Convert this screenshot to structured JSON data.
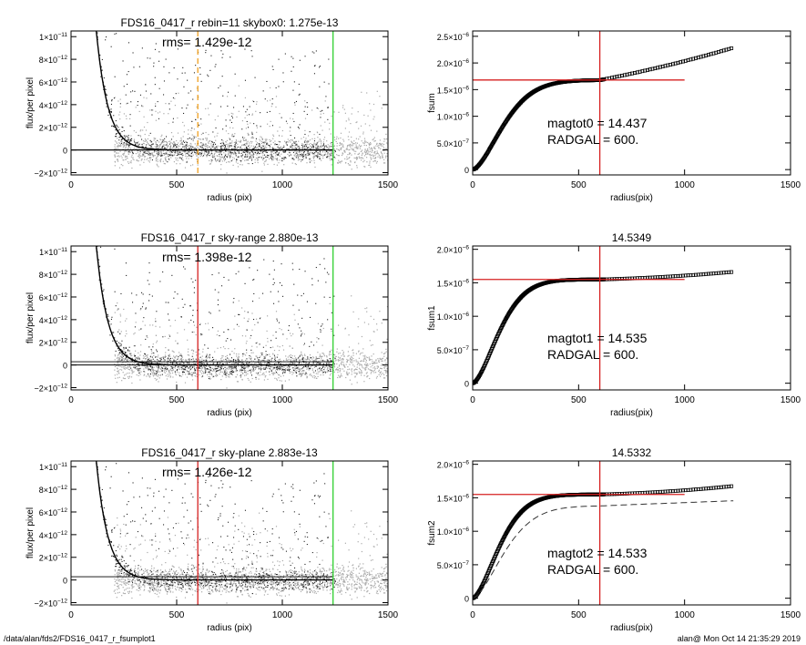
{
  "footer": {
    "path": "/data/alan/fds2/FDS16_0417_r_fsumplot1",
    "timestamp": "alan@  Mon Oct 14 21:35:29 2019"
  },
  "colors": {
    "red": "#d62020",
    "green": "#2fd02f",
    "orange": "#f0a020",
    "gray_light": "#aaaaaa",
    "gray_dark": "#555555"
  },
  "chart_data": [
    {
      "id": "profile1",
      "type": "scatter",
      "title": "FDS16_0417_r rebin=11    skybox0:  1.275e-13",
      "annotation": "rms= 1.429e-12",
      "xlabel": "radius (pix)",
      "ylabel": "flux/per pixel",
      "xlim": [
        0,
        1500
      ],
      "ylim": [
        -2.2e-12,
        1.05e-11
      ],
      "xticks": [
        0,
        500,
        1000,
        1500
      ],
      "xtick_labels": [
        "0",
        "500",
        "1000",
        "1500"
      ],
      "yticks": [
        -2e-12,
        0,
        2e-12,
        4e-12,
        6e-12,
        8e-12,
        1e-11
      ],
      "ytick_labels": [
        {
          "m": "−2×10",
          "e": "−12"
        },
        {
          "m": "0",
          "e": ""
        },
        {
          "m": "2×10",
          "e": "−12"
        },
        {
          "m": "4×10",
          "e": "−12"
        },
        {
          "m": "6×10",
          "e": "−12"
        },
        {
          "m": "8×10",
          "e": "−12"
        },
        {
          "m": "1×10",
          "e": "−11"
        }
      ],
      "sky_lines": [
        0,
        0
      ],
      "vlines": [
        {
          "x": 600,
          "color": "orange",
          "dashed": true
        },
        {
          "x": 1240,
          "color": "green",
          "dashed": false
        }
      ]
    },
    {
      "id": "growth1",
      "type": "line",
      "title": "",
      "xlabel": "radius(pix)",
      "ylabel": "fsum",
      "xlim": [
        0,
        1500
      ],
      "ylim": [
        -1e-07,
        2.6e-06
      ],
      "xticks": [
        0,
        500,
        1000,
        1500
      ],
      "xtick_labels": [
        "0",
        "500",
        "1000",
        "1500"
      ],
      "yticks": [
        0,
        5e-07,
        1e-06,
        1.5e-06,
        2e-06,
        2.5e-06
      ],
      "ytick_labels": [
        {
          "m": "0",
          "e": ""
        },
        {
          "m": "5.0×10",
          "e": "−7"
        },
        {
          "m": "1.0×10",
          "e": "−6"
        },
        {
          "m": "1.5×10",
          "e": "−6"
        },
        {
          "m": "2.0×10",
          "e": "−6"
        },
        {
          "m": "2.5×10",
          "e": "−6"
        }
      ],
      "curve": {
        "plateau": 1.68e-06,
        "scale": 185,
        "tail_slope": 7.6e-10,
        "tail_curv": 3.2e-13,
        "x_end": 1230
      },
      "hline": {
        "y": 1.68e-06,
        "x_end": 1000
      },
      "vline": {
        "x": 600
      },
      "text_lines": [
        "magtot0 =  14.437",
        "RADGAL =    600."
      ]
    },
    {
      "id": "profile2",
      "type": "scatter",
      "title": "FDS16_0417_r sky-range  2.880e-13",
      "annotation": "rms= 1.398e-12",
      "xlabel": "radius (pix)",
      "ylabel": "flux/per pixel",
      "xlim": [
        0,
        1500
      ],
      "ylim": [
        -2.2e-12,
        1.05e-11
      ],
      "xticks": [
        0,
        500,
        1000,
        1500
      ],
      "xtick_labels": [
        "0",
        "500",
        "1000",
        "1500"
      ],
      "yticks": [
        -2e-12,
        0,
        2e-12,
        4e-12,
        6e-12,
        8e-12,
        1e-11
      ],
      "ytick_labels": [
        {
          "m": "−2×10",
          "e": "−12"
        },
        {
          "m": "0",
          "e": ""
        },
        {
          "m": "2×10",
          "e": "−12"
        },
        {
          "m": "4×10",
          "e": "−12"
        },
        {
          "m": "6×10",
          "e": "−12"
        },
        {
          "m": "8×10",
          "e": "−12"
        },
        {
          "m": "1×10",
          "e": "−11"
        }
      ],
      "sky_lines": [
        0,
        2.88e-13
      ],
      "vlines": [
        {
          "x": 600,
          "color": "red",
          "dashed": false
        },
        {
          "x": 1240,
          "color": "green",
          "dashed": false
        }
      ]
    },
    {
      "id": "growth2",
      "type": "line",
      "title": "14.5349",
      "xlabel": "radius(pix)",
      "ylabel": "fsum1",
      "xlim": [
        0,
        1500
      ],
      "ylim": [
        -1e-07,
        2.05e-06
      ],
      "xticks": [
        0,
        500,
        1000,
        1500
      ],
      "xtick_labels": [
        "0",
        "500",
        "1000",
        "1500"
      ],
      "yticks": [
        0,
        5e-07,
        1e-06,
        1.5e-06,
        2e-06
      ],
      "ytick_labels": [
        {
          "m": "0",
          "e": ""
        },
        {
          "m": "5.0×10",
          "e": "−7"
        },
        {
          "m": "1.0×10",
          "e": "−6"
        },
        {
          "m": "1.5×10",
          "e": "−6"
        },
        {
          "m": "2.0×10",
          "e": "−6"
        }
      ],
      "curve": {
        "plateau": 1.55e-06,
        "scale": 160,
        "tail_slope": 8e-11,
        "tail_curv": 1.6e-13,
        "x_end": 1230
      },
      "hline": {
        "y": 1.55e-06,
        "x_end": 1000
      },
      "vline": {
        "x": 600
      },
      "text_lines": [
        "magtot1 =  14.535",
        "RADGAL =    600."
      ]
    },
    {
      "id": "profile3",
      "type": "scatter",
      "title": "FDS16_0417_r sky-plane  2.883e-13",
      "annotation": "rms= 1.426e-12",
      "xlabel": "radius (pix)",
      "ylabel": "flux/per pixel",
      "xlim": [
        0,
        1500
      ],
      "ylim": [
        -2.2e-12,
        1.05e-11
      ],
      "xticks": [
        0,
        500,
        1000,
        1500
      ],
      "xtick_labels": [
        "0",
        "500",
        "1000",
        "1500"
      ],
      "yticks": [
        -2e-12,
        0,
        2e-12,
        4e-12,
        6e-12,
        8e-12,
        1e-11
      ],
      "ytick_labels": [
        {
          "m": "−2×10",
          "e": "−12"
        },
        {
          "m": "0",
          "e": ""
        },
        {
          "m": "2×10",
          "e": "−12"
        },
        {
          "m": "4×10",
          "e": "−12"
        },
        {
          "m": "6×10",
          "e": "−12"
        },
        {
          "m": "8×10",
          "e": "−12"
        },
        {
          "m": "1×10",
          "e": "−11"
        }
      ],
      "sky_lines": [
        2.883e-13
      ],
      "vlines": [
        {
          "x": 600,
          "color": "red",
          "dashed": false
        },
        {
          "x": 1240,
          "color": "green",
          "dashed": false
        }
      ]
    },
    {
      "id": "growth3",
      "type": "line",
      "title": "14.5332",
      "xlabel": "radius(pix)",
      "ylabel": "fsum2",
      "xlim": [
        0,
        1500
      ],
      "ylim": [
        -1e-07,
        2.05e-06
      ],
      "xticks": [
        0,
        500,
        1000,
        1500
      ],
      "xtick_labels": [
        "0",
        "500",
        "1000",
        "1500"
      ],
      "yticks": [
        0,
        5e-07,
        1e-06,
        1.5e-06,
        2e-06
      ],
      "ytick_labels": [
        {
          "m": "0",
          "e": ""
        },
        {
          "m": "5.0×10",
          "e": "−7"
        },
        {
          "m": "1.0×10",
          "e": "−6"
        },
        {
          "m": "1.5×10",
          "e": "−6"
        },
        {
          "m": "2.0×10",
          "e": "−6"
        }
      ],
      "curve": {
        "plateau": 1.55e-06,
        "scale": 160,
        "tail_slope": 8e-11,
        "tail_curv": 1.9e-13,
        "x_end": 1230
      },
      "dashed_curve": {
        "plateau": 1.38e-06,
        "scale": 190,
        "tail_slope": 1.2e-10,
        "x_end": 1230
      },
      "hline": {
        "y": 1.55e-06,
        "x_end": 1000
      },
      "vline": {
        "x": 600
      },
      "text_lines": [
        "magtot2 =  14.533",
        "RADGAL =    600."
      ]
    }
  ]
}
